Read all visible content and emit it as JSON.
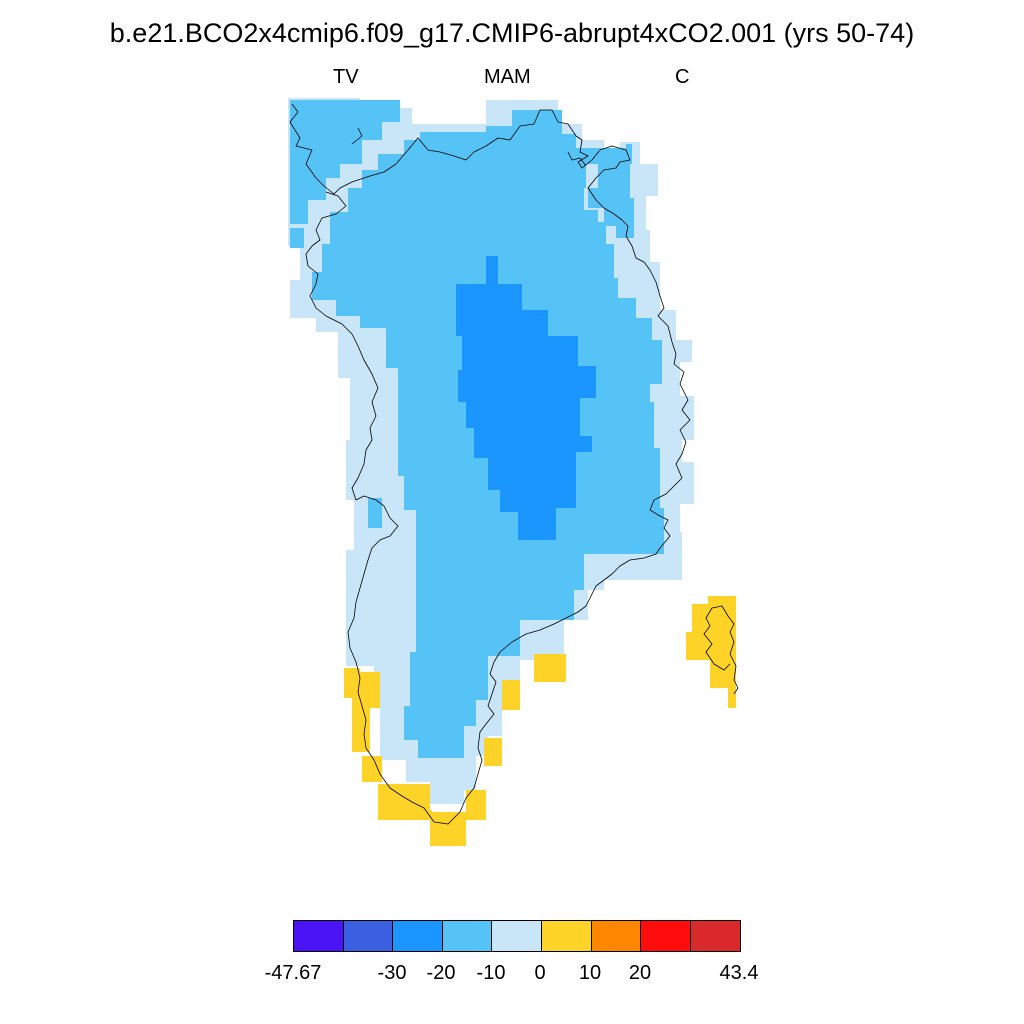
{
  "title": "b.e21.BCO2x4cmip6.f09_g17.CMIP6-abrupt4xCO2.001 (yrs 50-74)",
  "subtitles": {
    "left": "TV",
    "center": "MAM",
    "right": "C"
  },
  "colors": {
    "bin1": "#4a14f5",
    "bin2": "#3a5fe0",
    "bin3": "#1c96ff",
    "bin4": "#55c3f5",
    "bin5": "#c8e6f7",
    "bin6": "#fdd327",
    "bin7": "#ff8700",
    "bin8": "#ff0d0d",
    "bin9": "#d82a2a",
    "coastline": "#000000"
  },
  "colorbar": {
    "colors": [
      "#4a14f5",
      "#3a5fe0",
      "#1c96ff",
      "#55c3f5",
      "#c8e6f7",
      "#fdd327",
      "#ff8700",
      "#ff0d0d",
      "#d82a2a"
    ],
    "labels": [
      "-47.67",
      "-30",
      "-20",
      "-10",
      "0",
      "10",
      "20",
      "43.4"
    ]
  }
}
